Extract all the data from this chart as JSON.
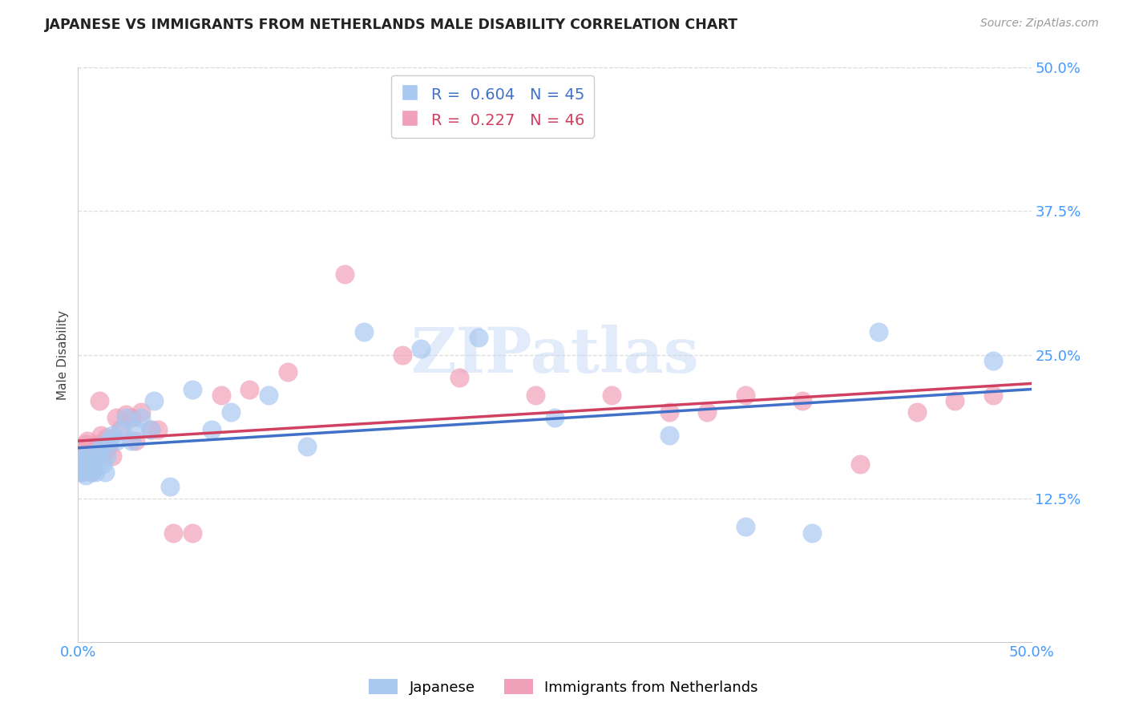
{
  "title": "JAPANESE VS IMMIGRANTS FROM NETHERLANDS MALE DISABILITY CORRELATION CHART",
  "source": "Source: ZipAtlas.com",
  "ylabel": "Male Disability",
  "xlim": [
    0.0,
    0.5
  ],
  "ylim": [
    0.0,
    0.5
  ],
  "xtick_vals": [
    0.0,
    0.1,
    0.2,
    0.3,
    0.4,
    0.5
  ],
  "ytick_vals": [
    0.125,
    0.25,
    0.375,
    0.5
  ],
  "grid_color": "#dddddd",
  "bg_color": "#ffffff",
  "japanese_color": "#a8c8f0",
  "netherlands_color": "#f0a0b8",
  "japanese_line_color": "#4070c8",
  "netherlands_line_color": "#d04060",
  "legend_R_japanese": "0.604",
  "legend_N_japanese": "45",
  "legend_R_netherlands": "0.227",
  "legend_N_netherlands": "46",
  "legend_label_japanese": "Japanese",
  "legend_label_netherlands": "Immigrants from Netherlands",
  "watermark": "ZIPatlas",
  "tick_color": "#4499ff",
  "japanese_x": [
    0.001,
    0.001,
    0.002,
    0.002,
    0.003,
    0.003,
    0.004,
    0.004,
    0.005,
    0.005,
    0.006,
    0.007,
    0.008,
    0.009,
    0.01,
    0.011,
    0.012,
    0.013,
    0.014,
    0.015,
    0.016,
    0.018,
    0.02,
    0.023,
    0.025,
    0.028,
    0.03,
    0.033,
    0.038,
    0.04,
    0.048,
    0.06,
    0.07,
    0.08,
    0.1,
    0.12,
    0.15,
    0.18,
    0.21,
    0.25,
    0.31,
    0.35,
    0.385,
    0.42,
    0.48
  ],
  "japanese_y": [
    0.155,
    0.16,
    0.148,
    0.152,
    0.16,
    0.155,
    0.145,
    0.15,
    0.158,
    0.162,
    0.155,
    0.148,
    0.15,
    0.148,
    0.162,
    0.165,
    0.17,
    0.155,
    0.148,
    0.162,
    0.175,
    0.18,
    0.175,
    0.185,
    0.195,
    0.175,
    0.185,
    0.195,
    0.185,
    0.21,
    0.135,
    0.22,
    0.185,
    0.2,
    0.215,
    0.17,
    0.27,
    0.255,
    0.265,
    0.195,
    0.18,
    0.1,
    0.095,
    0.27,
    0.245
  ],
  "netherlands_x": [
    0.001,
    0.001,
    0.002,
    0.002,
    0.003,
    0.003,
    0.004,
    0.005,
    0.006,
    0.007,
    0.008,
    0.009,
    0.01,
    0.011,
    0.012,
    0.013,
    0.014,
    0.015,
    0.016,
    0.018,
    0.02,
    0.022,
    0.025,
    0.028,
    0.03,
    0.033,
    0.038,
    0.042,
    0.05,
    0.06,
    0.075,
    0.09,
    0.11,
    0.14,
    0.17,
    0.2,
    0.24,
    0.28,
    0.31,
    0.33,
    0.35,
    0.38,
    0.41,
    0.44,
    0.46,
    0.48
  ],
  "netherlands_y": [
    0.165,
    0.155,
    0.16,
    0.148,
    0.162,
    0.155,
    0.172,
    0.175,
    0.155,
    0.148,
    0.165,
    0.168,
    0.172,
    0.21,
    0.18,
    0.165,
    0.165,
    0.178,
    0.17,
    0.162,
    0.195,
    0.185,
    0.198,
    0.195,
    0.175,
    0.2,
    0.185,
    0.185,
    0.095,
    0.095,
    0.215,
    0.22,
    0.235,
    0.32,
    0.25,
    0.23,
    0.215,
    0.215,
    0.2,
    0.2,
    0.215,
    0.21,
    0.155,
    0.2,
    0.21,
    0.215
  ]
}
